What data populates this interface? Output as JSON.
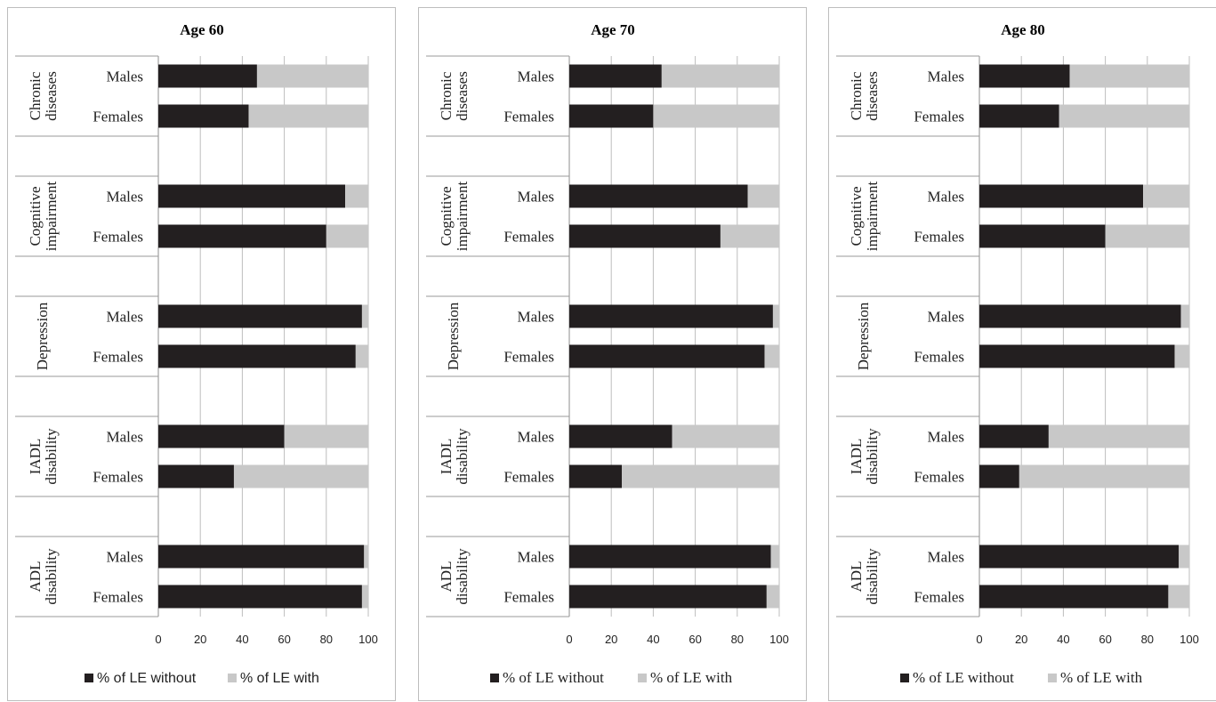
{
  "chart_data": [
    {
      "type": "bar",
      "orientation": "horizontal",
      "stacked": true,
      "title": "Age 60",
      "xlim": [
        0,
        100
      ],
      "xticks": [
        0,
        20,
        40,
        60,
        80,
        100
      ],
      "groups": [
        "Chronic diseases",
        "Cognitive impairment",
        "Depression",
        "IADL disability",
        "ADL disability"
      ],
      "subcategories": [
        "Males",
        "Females"
      ],
      "series": [
        {
          "name": "% of LE without",
          "values": [
            47,
            43,
            89,
            80,
            97,
            94,
            60,
            36,
            98,
            97
          ]
        },
        {
          "name": "% of LE with",
          "values": [
            53,
            57,
            11,
            20,
            3,
            6,
            40,
            64,
            2,
            3
          ]
        }
      ],
      "colors": {
        "without": "#231f20",
        "with": "#c8c8c8"
      },
      "legend_font": "sans",
      "grid": true,
      "legend_position": "bottom"
    },
    {
      "type": "bar",
      "orientation": "horizontal",
      "stacked": true,
      "title": "Age 70",
      "xlim": [
        0,
        100
      ],
      "xticks": [
        0,
        20,
        40,
        60,
        80,
        100
      ],
      "groups": [
        "Chronic diseases",
        "Cognitive impairment",
        "Depression",
        "IADL disability",
        "ADL disability"
      ],
      "subcategories": [
        "Males",
        "Females"
      ],
      "series": [
        {
          "name": "% of LE without",
          "values": [
            44,
            40,
            85,
            72,
            97,
            93,
            49,
            25,
            96,
            94
          ]
        },
        {
          "name": "% of LE with",
          "values": [
            56,
            60,
            15,
            28,
            3,
            7,
            51,
            75,
            4,
            6
          ]
        }
      ],
      "colors": {
        "without": "#231f20",
        "with": "#c8c8c8"
      },
      "legend_font": "serif",
      "grid": true,
      "legend_position": "bottom"
    },
    {
      "type": "bar",
      "orientation": "horizontal",
      "stacked": true,
      "title": "Age 80",
      "xlim": [
        0,
        100
      ],
      "xticks": [
        0,
        20,
        40,
        60,
        80,
        100
      ],
      "groups": [
        "Chronic diseases",
        "Cognitive impairment",
        "Depression",
        "IADL disability",
        "ADL disability"
      ],
      "subcategories": [
        "Males",
        "Females"
      ],
      "series": [
        {
          "name": "% of LE without",
          "values": [
            43,
            38,
            78,
            60,
            96,
            93,
            33,
            19,
            95,
            90
          ]
        },
        {
          "name": "% of LE with",
          "values": [
            57,
            62,
            22,
            40,
            4,
            7,
            67,
            81,
            5,
            10
          ]
        }
      ],
      "colors": {
        "without": "#231f20",
        "with": "#c8c8c8"
      },
      "legend_font": "serif",
      "grid": true,
      "legend_position": "bottom"
    }
  ]
}
